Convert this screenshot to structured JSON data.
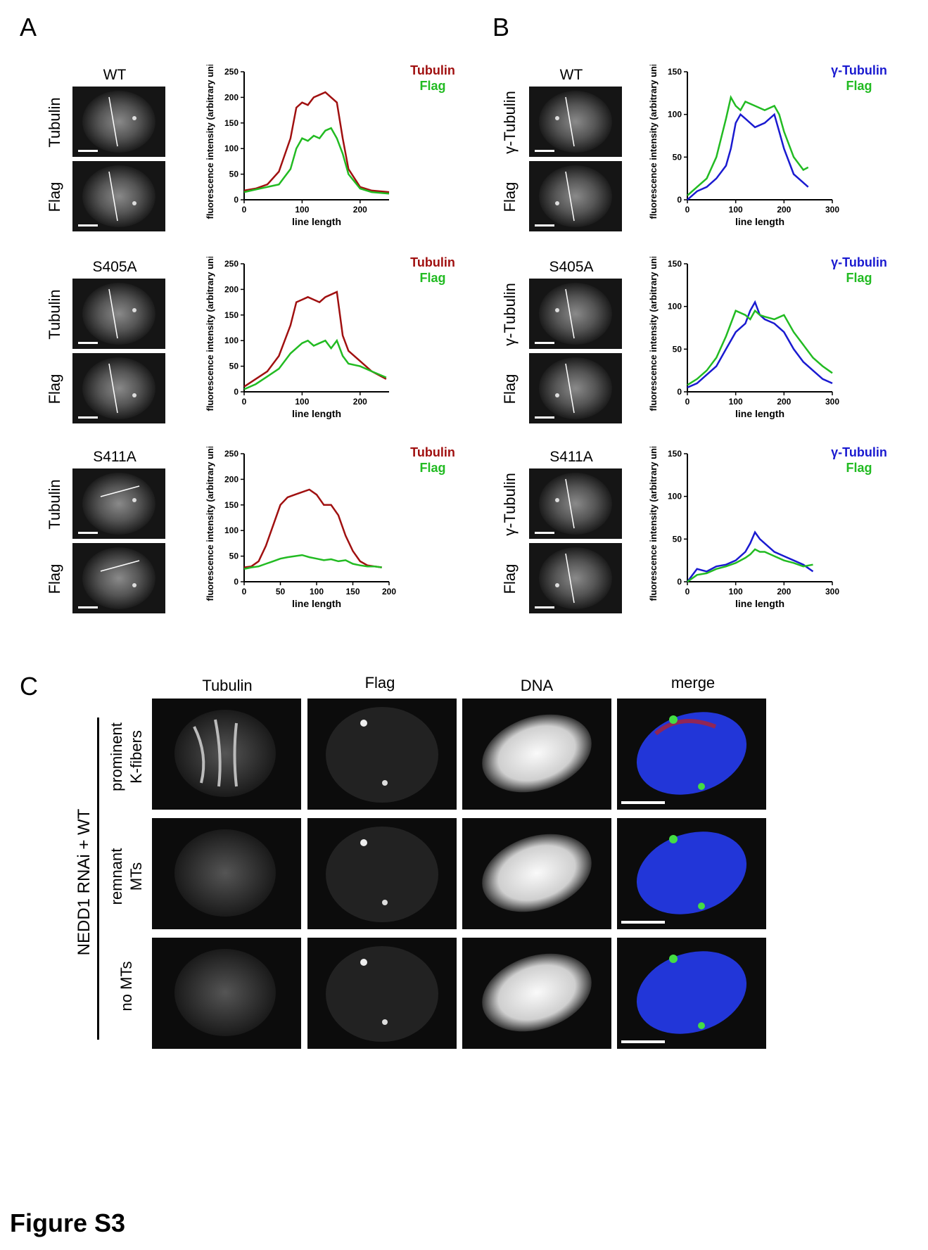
{
  "figure_title": "Figure S3",
  "panels": {
    "A": {
      "letter": "A",
      "rows": [
        {
          "condition": "WT",
          "top_label": "Tubulin",
          "bottom_label": "Flag"
        },
        {
          "condition": "S405A",
          "top_label": "Tubulin",
          "bottom_label": "Flag"
        },
        {
          "condition": "S411A",
          "top_label": "Tubulin",
          "bottom_label": "Flag"
        }
      ]
    },
    "B": {
      "letter": "B",
      "rows": [
        {
          "condition": "WT",
          "top_label": "γ-Tubulin",
          "bottom_label": "Flag"
        },
        {
          "condition": "S405A",
          "top_label": "γ-Tubulin",
          "bottom_label": "Flag"
        },
        {
          "condition": "S411A",
          "top_label": "γ-Tubulin",
          "bottom_label": "Flag"
        }
      ]
    },
    "C": {
      "letter": "C",
      "columns": [
        "Tubulin",
        "Flag",
        "DNA",
        "merge"
      ],
      "group_label": "NEDD1 RNAi + WT",
      "rows": [
        {
          "line1": "prominent",
          "line2": "K-fibers"
        },
        {
          "line1": "remnant",
          "line2": "MTs"
        },
        {
          "line1": "no MTs",
          "line2": ""
        }
      ]
    }
  },
  "colors": {
    "tubulin": "#a01010",
    "flag": "#22bb22",
    "gamma": "#1a1ad0"
  },
  "chart_data": [
    {
      "id": "A-WT",
      "type": "line",
      "ylabel": "fluorescence intensity (arbitrary units)",
      "xlabel": "line length",
      "xlim": [
        0,
        250
      ],
      "ylim": [
        0,
        250
      ],
      "xticks": [
        0,
        100,
        200
      ],
      "yticks": [
        0,
        50,
        100,
        150,
        200,
        250
      ],
      "series": [
        {
          "name": "Tubulin",
          "color": "#a01010",
          "x": [
            0,
            20,
            40,
            60,
            80,
            90,
            100,
            110,
            120,
            130,
            140,
            150,
            160,
            170,
            180,
            200,
            220,
            250
          ],
          "y": [
            18,
            22,
            30,
            55,
            120,
            180,
            190,
            185,
            200,
            205,
            210,
            200,
            190,
            120,
            60,
            25,
            18,
            15
          ]
        },
        {
          "name": "Flag",
          "color": "#22bb22",
          "x": [
            0,
            20,
            40,
            60,
            80,
            90,
            100,
            110,
            120,
            130,
            140,
            150,
            160,
            170,
            180,
            200,
            220,
            250
          ],
          "y": [
            15,
            20,
            25,
            30,
            60,
            100,
            120,
            115,
            125,
            120,
            135,
            140,
            120,
            90,
            50,
            22,
            15,
            12
          ]
        }
      ]
    },
    {
      "id": "A-S405A",
      "type": "line",
      "ylabel": "fluorescence intensity (arbitrary units)",
      "xlabel": "line length",
      "xlim": [
        0,
        250
      ],
      "ylim": [
        0,
        250
      ],
      "xticks": [
        0,
        100,
        200
      ],
      "yticks": [
        0,
        50,
        100,
        150,
        200,
        250
      ],
      "series": [
        {
          "name": "Tubulin",
          "color": "#a01010",
          "x": [
            0,
            20,
            40,
            60,
            80,
            90,
            100,
            110,
            120,
            130,
            140,
            150,
            160,
            170,
            180,
            200,
            220,
            245
          ],
          "y": [
            10,
            25,
            40,
            70,
            130,
            175,
            180,
            185,
            180,
            175,
            185,
            190,
            195,
            110,
            80,
            60,
            40,
            25
          ]
        },
        {
          "name": "Flag",
          "color": "#22bb22",
          "x": [
            0,
            20,
            40,
            60,
            80,
            90,
            100,
            110,
            120,
            130,
            140,
            150,
            160,
            170,
            180,
            200,
            220,
            245
          ],
          "y": [
            5,
            15,
            30,
            45,
            75,
            85,
            95,
            100,
            90,
            95,
            100,
            85,
            100,
            70,
            55,
            50,
            40,
            28
          ]
        }
      ]
    },
    {
      "id": "A-S411A",
      "type": "line",
      "ylabel": "fluorescence intensity (arbitrary units)",
      "xlabel": "line length",
      "xlim": [
        0,
        200
      ],
      "ylim": [
        0,
        250
      ],
      "xticks": [
        0,
        50,
        100,
        150,
        200
      ],
      "yticks": [
        0,
        50,
        100,
        150,
        200,
        250
      ],
      "series": [
        {
          "name": "Tubulin",
          "color": "#a01010",
          "x": [
            0,
            10,
            20,
            30,
            40,
            50,
            60,
            70,
            80,
            90,
            100,
            110,
            120,
            130,
            140,
            150,
            160,
            170,
            180,
            190
          ],
          "y": [
            28,
            30,
            40,
            70,
            110,
            150,
            165,
            170,
            175,
            180,
            170,
            150,
            150,
            130,
            90,
            60,
            40,
            32,
            30,
            28
          ]
        },
        {
          "name": "Flag",
          "color": "#22bb22",
          "x": [
            0,
            10,
            20,
            30,
            40,
            50,
            60,
            70,
            80,
            90,
            100,
            110,
            120,
            130,
            140,
            150,
            160,
            170,
            180,
            190
          ],
          "y": [
            25,
            28,
            30,
            35,
            40,
            45,
            48,
            50,
            52,
            48,
            45,
            42,
            44,
            40,
            42,
            35,
            32,
            30,
            30,
            28
          ]
        }
      ]
    },
    {
      "id": "B-WT",
      "type": "line",
      "ylabel": "fluorescence intensity (arbitrary units)",
      "xlabel": "line length",
      "xlim": [
        0,
        300
      ],
      "ylim": [
        0,
        150
      ],
      "xticks": [
        0,
        100,
        200,
        300
      ],
      "yticks": [
        0,
        50,
        100,
        150
      ],
      "series": [
        {
          "name": "γ-Tubulin",
          "color": "#1a1ad0",
          "x": [
            0,
            20,
            40,
            60,
            80,
            90,
            100,
            110,
            120,
            140,
            160,
            180,
            190,
            200,
            220,
            240,
            250
          ],
          "y": [
            0,
            10,
            15,
            25,
            40,
            60,
            90,
            100,
            95,
            85,
            90,
            100,
            80,
            60,
            30,
            20,
            15
          ]
        },
        {
          "name": "Flag",
          "color": "#22bb22",
          "x": [
            0,
            20,
            40,
            60,
            80,
            90,
            100,
            110,
            120,
            140,
            160,
            180,
            190,
            200,
            220,
            240,
            250
          ],
          "y": [
            5,
            15,
            25,
            50,
            95,
            120,
            110,
            105,
            115,
            110,
            105,
            110,
            100,
            80,
            50,
            35,
            38
          ]
        }
      ]
    },
    {
      "id": "B-S405A",
      "type": "line",
      "ylabel": "fluorescence intensity (arbitrary units)",
      "xlabel": "line length",
      "xlim": [
        0,
        300
      ],
      "ylim": [
        0,
        150
      ],
      "xticks": [
        0,
        100,
        200,
        300
      ],
      "yticks": [
        0,
        50,
        100,
        150
      ],
      "series": [
        {
          "name": "γ-Tubulin",
          "color": "#1a1ad0",
          "x": [
            0,
            20,
            40,
            60,
            80,
            100,
            120,
            130,
            140,
            150,
            160,
            180,
            200,
            220,
            240,
            260,
            280,
            300
          ],
          "y": [
            5,
            10,
            20,
            30,
            50,
            70,
            80,
            95,
            105,
            90,
            85,
            80,
            70,
            50,
            35,
            25,
            15,
            10
          ]
        },
        {
          "name": "Flag",
          "color": "#22bb22",
          "x": [
            0,
            20,
            40,
            60,
            80,
            100,
            120,
            130,
            140,
            150,
            160,
            180,
            200,
            220,
            240,
            260,
            280,
            300
          ],
          "y": [
            8,
            15,
            25,
            40,
            65,
            95,
            90,
            85,
            95,
            90,
            88,
            85,
            90,
            70,
            55,
            40,
            30,
            22
          ]
        }
      ]
    },
    {
      "id": "B-S411A",
      "type": "line",
      "ylabel": "fluorescence intensity (arbitrary units)",
      "xlabel": "line length",
      "xlim": [
        0,
        300
      ],
      "ylim": [
        0,
        150
      ],
      "xticks": [
        0,
        100,
        200,
        300
      ],
      "yticks": [
        0,
        50,
        100,
        150
      ],
      "series": [
        {
          "name": "γ-Tubulin",
          "color": "#1a1ad0",
          "x": [
            0,
            20,
            40,
            60,
            80,
            100,
            120,
            130,
            140,
            150,
            160,
            180,
            200,
            220,
            240,
            260
          ],
          "y": [
            0,
            15,
            12,
            18,
            20,
            25,
            35,
            45,
            58,
            50,
            45,
            35,
            30,
            25,
            20,
            12
          ]
        },
        {
          "name": "Flag",
          "color": "#22bb22",
          "x": [
            0,
            20,
            40,
            60,
            80,
            100,
            120,
            130,
            140,
            150,
            160,
            180,
            200,
            220,
            240,
            260
          ],
          "y": [
            0,
            8,
            10,
            15,
            18,
            22,
            28,
            32,
            38,
            35,
            35,
            30,
            25,
            22,
            18,
            20
          ]
        }
      ]
    }
  ]
}
